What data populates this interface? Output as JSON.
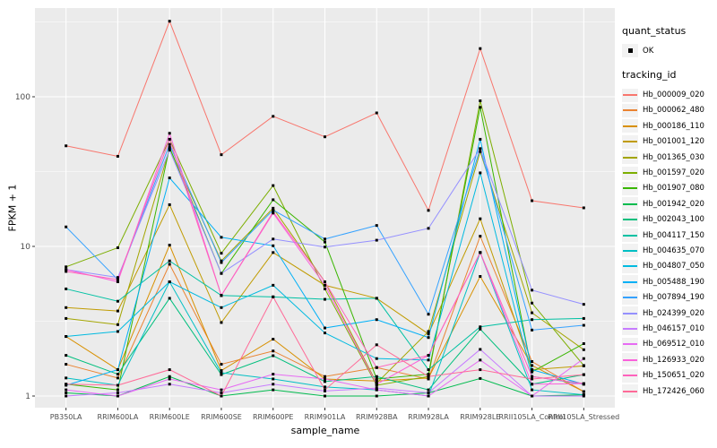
{
  "figure": {
    "xlabel": "sample_name",
    "ylabel": "FPKM + 1",
    "background": "#FFFFFF"
  },
  "legend": {
    "quant_status_title": "quant_status",
    "quant_status_items": [
      {
        "label": "OK",
        "marker": "black-square-point"
      }
    ],
    "tracking_id_title": "tracking_id"
  },
  "chart_data": {
    "type": "line",
    "x_axis": {
      "label": "sample_name",
      "type": "categorical"
    },
    "y_axis": {
      "label": "FPKM + 1",
      "scale": "log10",
      "ticks": [
        1,
        10,
        100
      ],
      "minor_ticks": [
        3.162,
        31.62,
        316.2
      ],
      "ylim": [
        0.84,
        390
      ]
    },
    "grid": "on",
    "panel_background": "#EBEBEB",
    "grid_color": "#FFFFFF",
    "point_marker": {
      "shape": "square",
      "color": "#000000",
      "size": 3
    },
    "legend_position": "right",
    "categories": [
      "PB350LA",
      "RRIM600LA",
      "RRIM600LE",
      "RRIM600SE",
      "RRIM600PE",
      "RRIM901LA",
      "RRIM928BA",
      "RRIM928LA",
      "RRIM928LE",
      "RRII105LA_Control",
      "RRII105LA_Stressed"
    ],
    "series": [
      {
        "name": "Hb_000009_020",
        "color": "#F8766D",
        "values": [
          47,
          40,
          320,
          41,
          74,
          54,
          78,
          17.4,
          210,
          20.2,
          18.1
        ]
      },
      {
        "name": "Hb_000062_480",
        "color": "#EA8331",
        "values": [
          1.63,
          1.32,
          7.6,
          1.63,
          2.0,
          1.35,
          1.55,
          1.3,
          11.7,
          1.7,
          1.07
        ]
      },
      {
        "name": "Hb_000186_110",
        "color": "#D89000",
        "values": [
          2.5,
          1.5,
          10.2,
          1.48,
          2.4,
          1.3,
          1.26,
          1.32,
          6.3,
          1.6,
          1.07
        ]
      },
      {
        "name": "Hb_001001_120",
        "color": "#C09B00",
        "values": [
          3.9,
          3.7,
          19,
          3.1,
          9.1,
          5.5,
          4.5,
          2.6,
          15.3,
          1.5,
          1.59
        ]
      },
      {
        "name": "Hb_001365_030",
        "color": "#A3A500",
        "values": [
          3.3,
          3.0,
          45,
          8.0,
          18,
          5.8,
          1.22,
          2.7,
          43,
          3.6,
          2.04
        ]
      },
      {
        "name": "Hb_001597_020",
        "color": "#7CAE00",
        "values": [
          7.3,
          9.8,
          52,
          9.0,
          25.5,
          5.2,
          1.18,
          1.35,
          94,
          4.18,
          1.6
        ]
      },
      {
        "name": "Hb_001907_080",
        "color": "#39B600",
        "values": [
          1.2,
          1.1,
          46,
          6.6,
          20.5,
          10.7,
          1.3,
          1.4,
          85,
          1.45,
          2.24
        ]
      },
      {
        "name": "Hb_001942_020",
        "color": "#00BB4E",
        "values": [
          1.05,
          1.0,
          1.35,
          1.0,
          1.1,
          1.0,
          1.0,
          1.05,
          1.31,
          1.0,
          1.02
        ]
      },
      {
        "name": "Hb_002043_100",
        "color": "#00BF7D",
        "values": [
          1.87,
          1.4,
          4.5,
          1.39,
          1.86,
          1.25,
          1.35,
          1.1,
          2.8,
          1.2,
          1.39
        ]
      },
      {
        "name": "Hb_004117_150",
        "color": "#00C1A3",
        "values": [
          5.2,
          4.3,
          8.0,
          4.7,
          4.6,
          4.43,
          4.5,
          1.5,
          2.9,
          3.24,
          3.3
        ]
      },
      {
        "name": "Hb_004635_070",
        "color": "#00BFC4",
        "values": [
          1.32,
          1.18,
          5.8,
          1.43,
          1.3,
          1.15,
          1.1,
          1.0,
          9.1,
          1.1,
          1.02
        ]
      },
      {
        "name": "Hb_004807_050",
        "color": "#00BAE0",
        "values": [
          2.5,
          2.7,
          5.8,
          3.9,
          5.5,
          2.64,
          1.78,
          1.74,
          31,
          1.35,
          1.2
        ]
      },
      {
        "name": "Hb_005488_190",
        "color": "#00B0F6",
        "values": [
          1.18,
          1.5,
          28.7,
          11.5,
          10.1,
          2.85,
          3.24,
          2.46,
          52,
          1.5,
          1.2
        ]
      },
      {
        "name": "Hb_007894_190",
        "color": "#35A2FF",
        "values": [
          13.5,
          6.0,
          48,
          7.8,
          17.5,
          11.2,
          13.8,
          3.52,
          45,
          2.76,
          2.97
        ]
      },
      {
        "name": "Hb_024399_020",
        "color": "#9590FF",
        "values": [
          7.0,
          6.2,
          44,
          6.6,
          11.2,
          9.9,
          11.0,
          13.2,
          45,
          5.1,
          4.1
        ]
      },
      {
        "name": "Hb_046157_010",
        "color": "#C77CFF",
        "values": [
          1.0,
          1.05,
          1.2,
          1.05,
          1.2,
          1.08,
          1.13,
          1.05,
          2.05,
          1.0,
          1.0
        ]
      },
      {
        "name": "Hb_069512_010",
        "color": "#E76BF3",
        "values": [
          1.1,
          1.0,
          1.3,
          1.1,
          1.4,
          1.3,
          1.1,
          1.0,
          1.74,
          1.0,
          1.78
        ]
      },
      {
        "name": "Hb_126933_020",
        "color": "#FA62DB",
        "values": [
          7.0,
          5.8,
          57,
          4.7,
          16.7,
          5.5,
          1.2,
          1.87,
          9.1,
          1.2,
          1.21
        ]
      },
      {
        "name": "Hb_150651_020",
        "color": "#FF62BC",
        "values": [
          6.8,
          6.0,
          52,
          4.7,
          17,
          5.8,
          1.55,
          1.87,
          9.1,
          1.35,
          1.21
        ]
      },
      {
        "name": "Hb_172426_060",
        "color": "#FF6A98",
        "values": [
          1.2,
          1.18,
          1.5,
          1.0,
          4.6,
          1.1,
          2.2,
          1.35,
          1.5,
          1.3,
          1.39
        ]
      }
    ]
  }
}
